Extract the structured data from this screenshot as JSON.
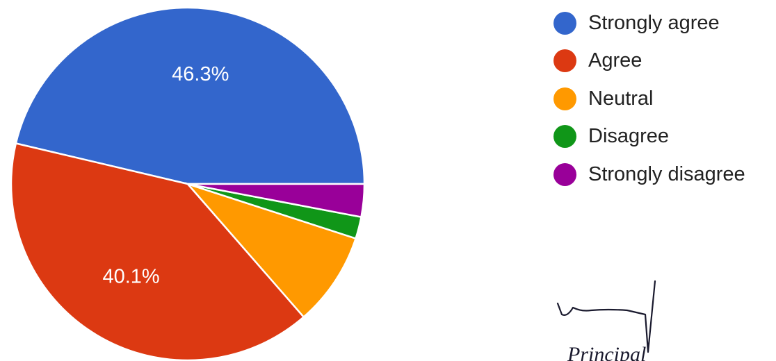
{
  "chart_data": {
    "type": "pie",
    "title": "",
    "slices": [
      {
        "label": "Strongly agree",
        "value": 46.3,
        "display": "46.3%",
        "color": "#3366cc"
      },
      {
        "label": "Agree",
        "value": 40.1,
        "display": "40.1%",
        "color": "#dc3912"
      },
      {
        "label": "Neutral",
        "value": 8.6,
        "display": "",
        "color": "#ff9900"
      },
      {
        "label": "Disagree",
        "value": 2.0,
        "display": "",
        "color": "#109618"
      },
      {
        "label": "Strongly disagree",
        "value": 3.0,
        "display": "",
        "color": "#990099"
      }
    ],
    "start": "3 o'clock, counter-clockwise",
    "legend_position": "right",
    "slice_labels": "inside, white"
  },
  "signature": {
    "text": "Principal"
  }
}
